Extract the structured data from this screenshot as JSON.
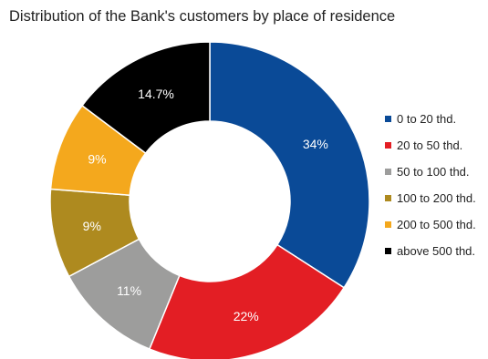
{
  "chart_data": {
    "type": "pie",
    "donut": true,
    "title": "Distribution of the Bank's customers by place of residence",
    "legend_position": "right",
    "slices": [
      {
        "name": "0 to 20 thd.",
        "value": 34,
        "label": "34%",
        "color": "#0a4a97"
      },
      {
        "name": "20 to 50 thd.",
        "value": 22,
        "label": "22%",
        "color": "#e31e24"
      },
      {
        "name": "50 to 100 thd.",
        "value": 11,
        "label": "11%",
        "color": "#9d9d9c"
      },
      {
        "name": "100 to 200 thd.",
        "value": 9,
        "label": "9%",
        "color": "#ae8a1f"
      },
      {
        "name": "200 to 500 thd.",
        "value": 9,
        "label": "9%",
        "color": "#f4a81d"
      },
      {
        "name": "above 500 thd.",
        "value": 14.7,
        "label": "14.7%",
        "color": "#000000"
      }
    ]
  }
}
